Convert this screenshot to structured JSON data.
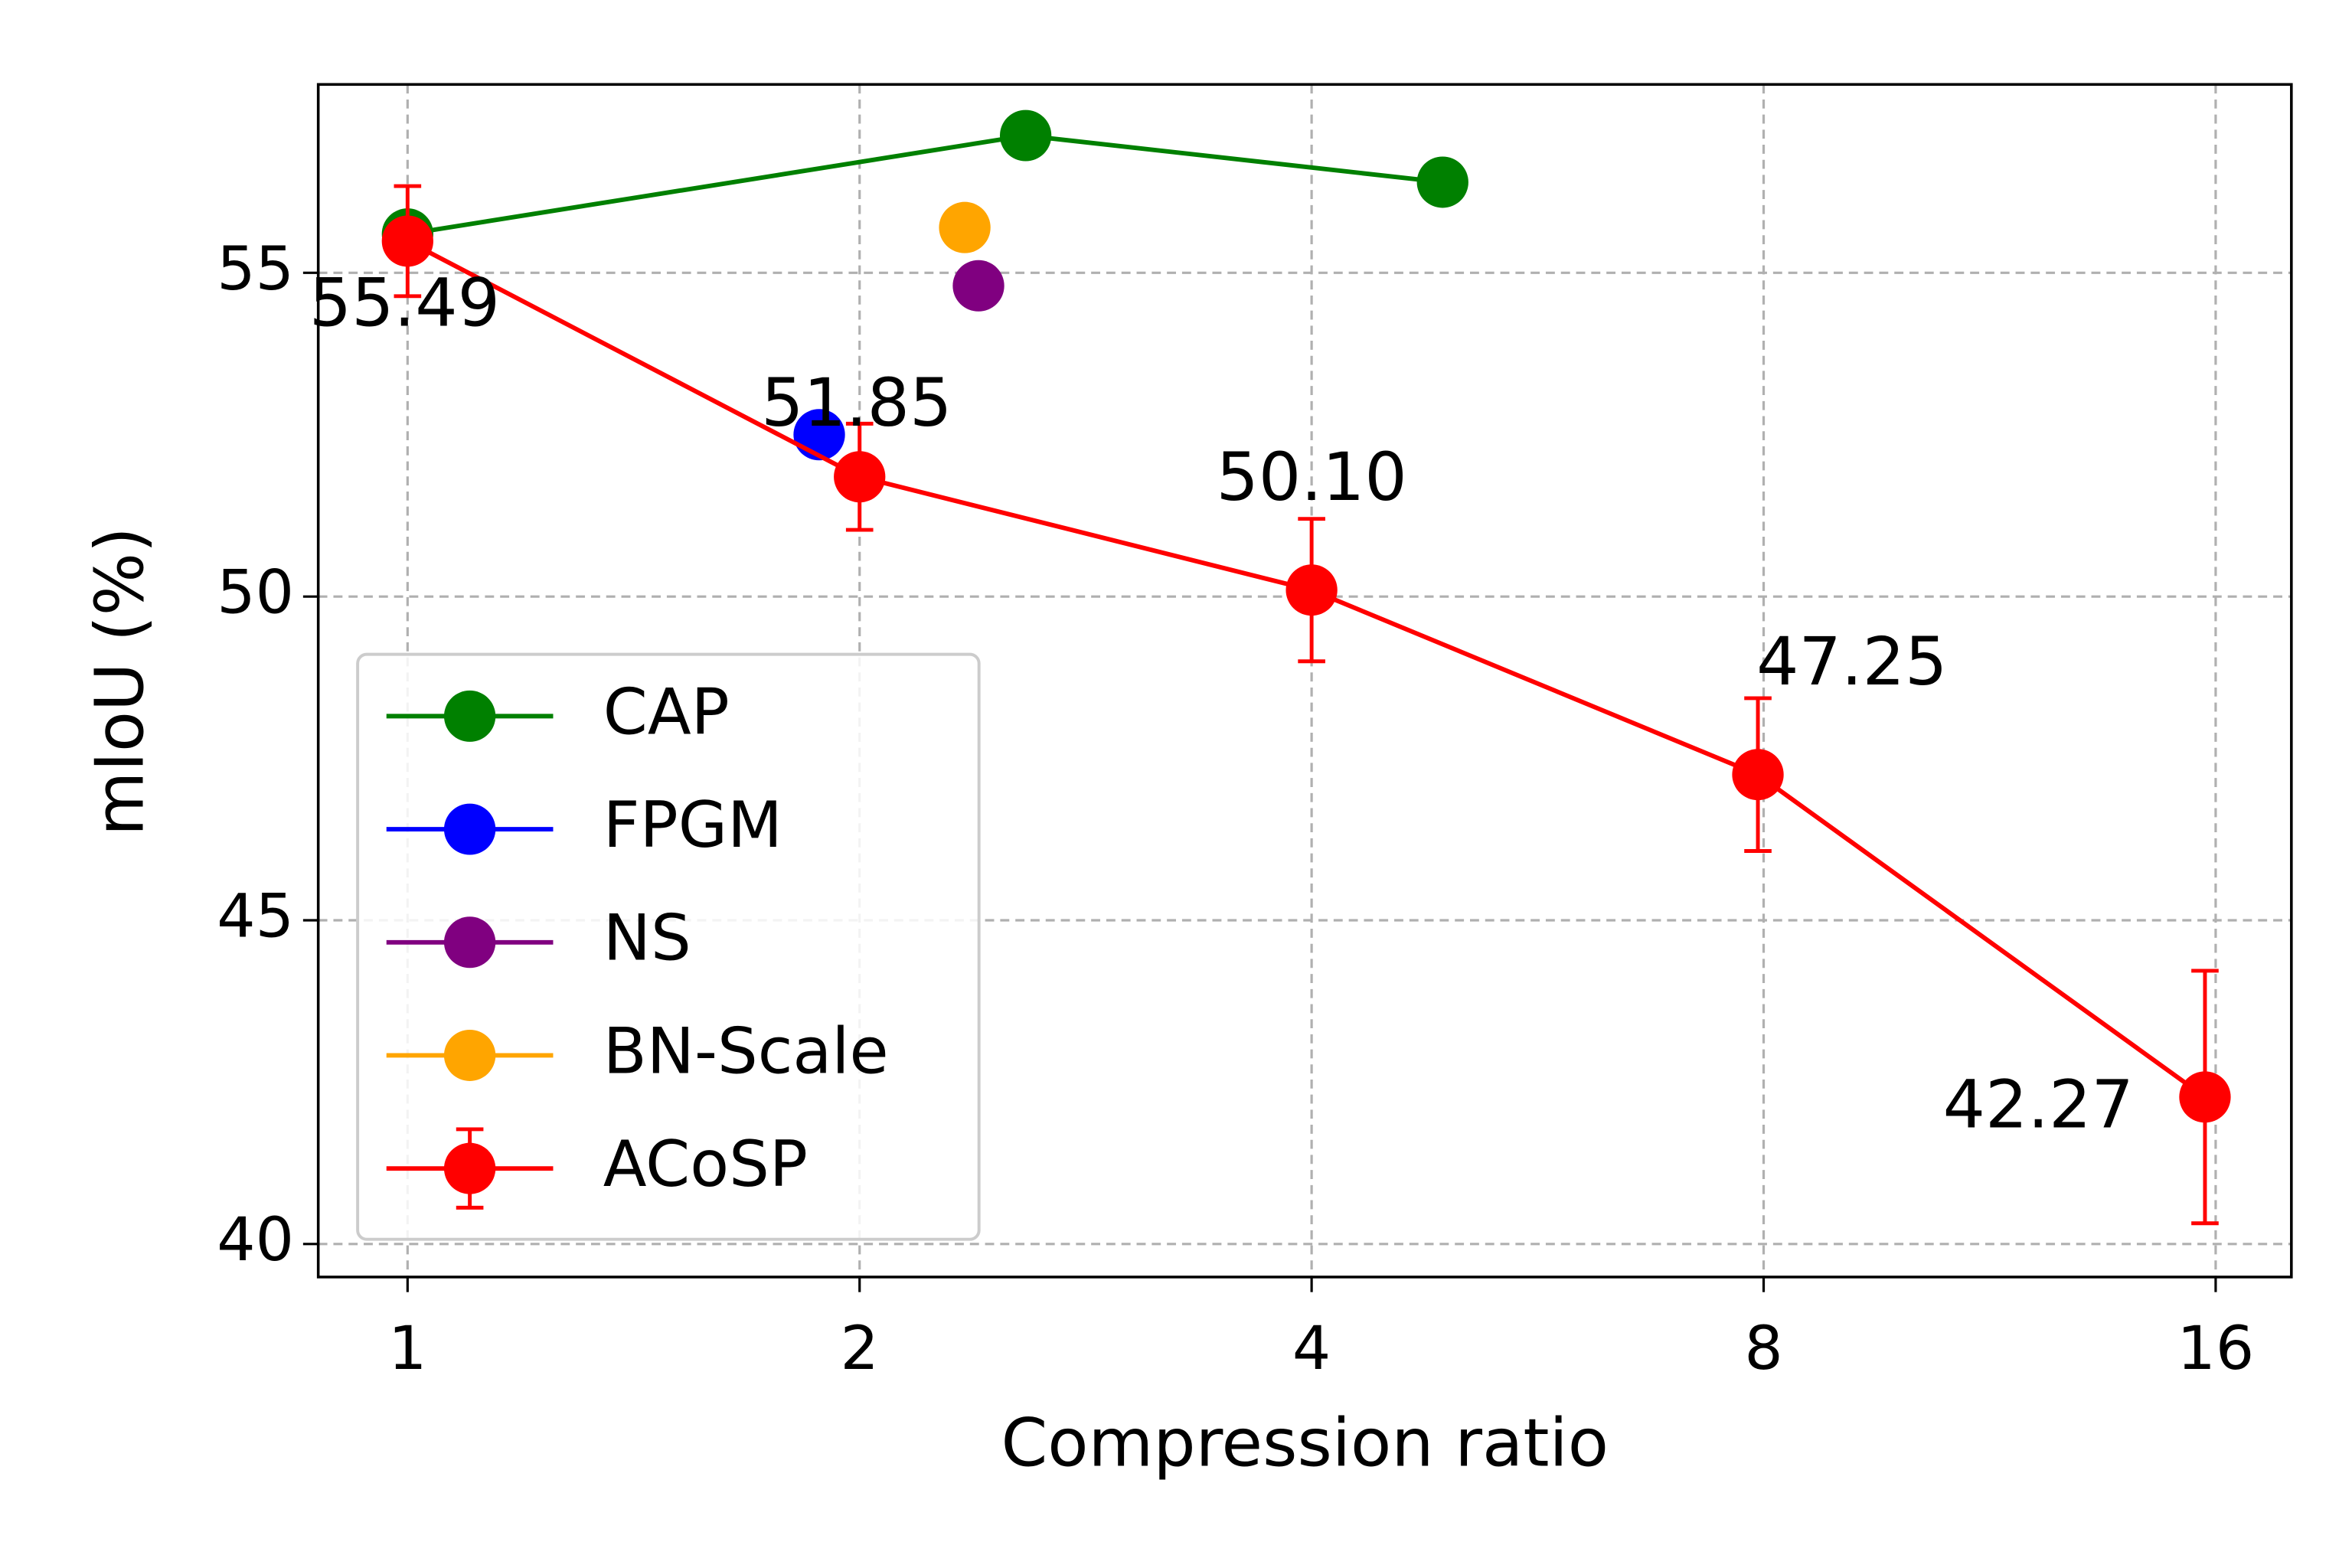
{
  "chart_data": {
    "type": "line",
    "xlabel": "Compression ratio",
    "ylabel": "mIoU (%)",
    "log_x": true,
    "log_base": 2,
    "grid": true,
    "legend": "lower left",
    "xlim": [
      0.872,
      17.97
    ],
    "xticks": [
      1,
      2,
      4,
      8,
      16
    ],
    "ylim": [
      39.49,
      57.91
    ],
    "yticks": [
      40,
      45,
      50,
      55
    ],
    "series": [
      {
        "name": "CAP",
        "color": "#008000",
        "x": [
          1,
          2.58,
          4.89
        ],
        "values": [
          55.6,
          57.12,
          56.4
        ]
      },
      {
        "name": "FPGM",
        "color": "#0000ff",
        "x": [
          1.88
        ],
        "values": [
          52.5
        ]
      },
      {
        "name": "NS",
        "color": "#800080",
        "x": [
          2.4
        ],
        "values": [
          54.8
        ]
      },
      {
        "name": "BN-Scale",
        "color": "#ffa500",
        "x": [
          2.35
        ],
        "values": [
          55.7
        ]
      },
      {
        "name": "ACoSP",
        "color": "#ff0000",
        "x": [
          1,
          2,
          4,
          7.93,
          15.74
        ],
        "values": [
          55.49,
          51.85,
          50.1,
          47.25,
          42.27
        ],
        "errors": [
          0.85,
          0.82,
          1.1,
          1.18,
          1.95
        ],
        "value_labels": [
          "55.49",
          "51.85",
          "50.10",
          "47.25",
          "42.27"
        ]
      }
    ]
  }
}
